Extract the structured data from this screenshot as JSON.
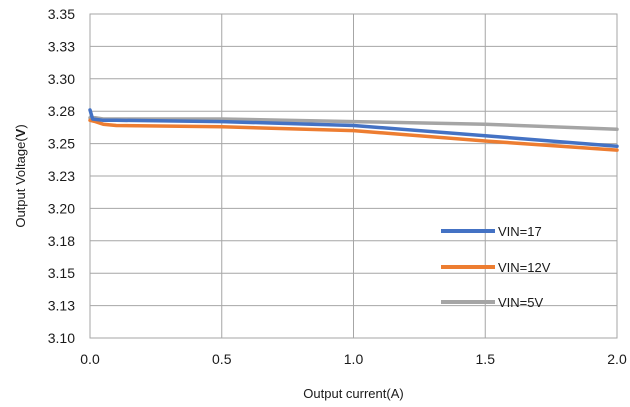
{
  "chart_data": {
    "type": "line",
    "title": "",
    "xlabel": "Output current(A)",
    "ylabel_prefix": "Output Voltage(",
    "ylabel_unit": "V",
    "ylabel_suffix": ")",
    "xlim": [
      0,
      2.0
    ],
    "ylim": [
      3.1,
      3.35
    ],
    "x_ticks": [
      0,
      0.5,
      1.0,
      1.5,
      2.0
    ],
    "x_tick_labels": [
      "0.0",
      "0.5",
      "1.0",
      "1.5",
      "2.0"
    ],
    "y_ticks": [
      3.1,
      3.125,
      3.15,
      3.175,
      3.2,
      3.225,
      3.25,
      3.275,
      3.3,
      3.325,
      3.35
    ],
    "y_tick_labels": [
      "3.10",
      "3.13",
      "3.15",
      "3.18",
      "3.20",
      "3.23",
      "3.25",
      "3.28",
      "3.30",
      "3.33",
      "3.35"
    ],
    "grid": true,
    "legend_position": "lower-right",
    "series": [
      {
        "name": "VIN=17",
        "color": "#4472c4",
        "x": [
          0,
          0.01,
          0.05,
          0.1,
          0.5,
          1.0,
          1.5,
          2.0
        ],
        "y": [
          3.276,
          3.269,
          3.268,
          3.268,
          3.267,
          3.264,
          3.256,
          3.248
        ]
      },
      {
        "name": "VIN=12V",
        "color": "#ed7d31",
        "x": [
          0,
          0.02,
          0.05,
          0.1,
          0.5,
          1.0,
          1.5,
          2.0
        ],
        "y": [
          3.268,
          3.267,
          3.265,
          3.264,
          3.263,
          3.26,
          3.252,
          3.245
        ]
      },
      {
        "name": "VIN=5V",
        "color": "#a5a5a5",
        "x": [
          0,
          0.02,
          0.05,
          0.5,
          1.0,
          1.5,
          2.0
        ],
        "y": [
          3.27,
          3.27,
          3.269,
          3.269,
          3.267,
          3.265,
          3.261
        ]
      }
    ]
  }
}
